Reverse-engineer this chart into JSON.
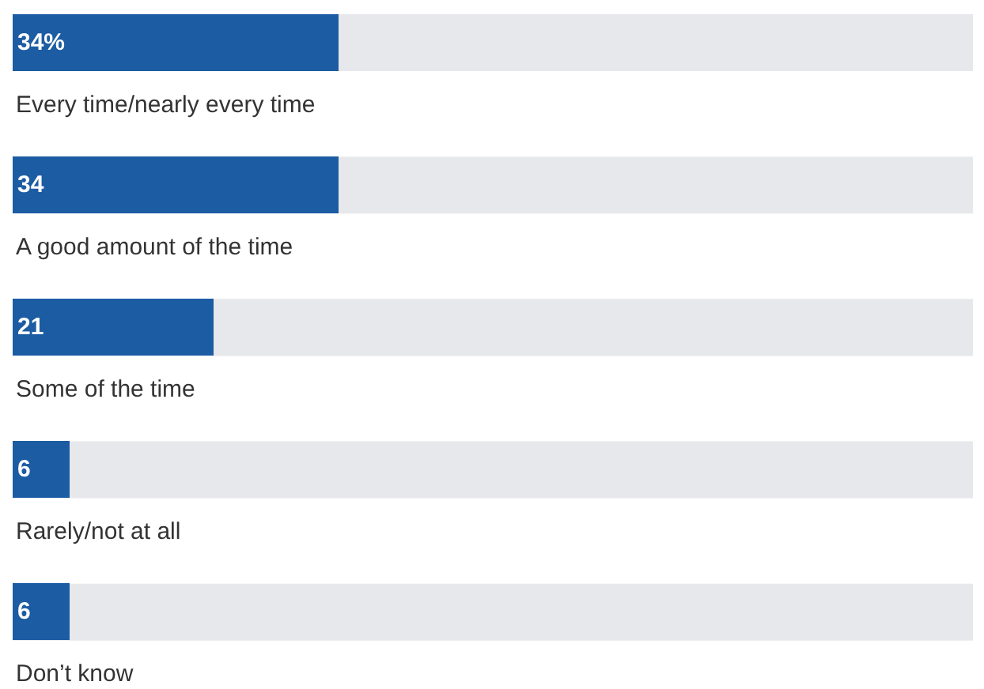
{
  "chart_data": {
    "type": "bar",
    "orientation": "horizontal",
    "categories": [
      "Every time/nearly every time",
      "A good amount of the time",
      "Some of the time",
      "Rarely/not at all",
      "Don’t know"
    ],
    "values": [
      34,
      34,
      21,
      6,
      6
    ],
    "value_labels": [
      "34%",
      "34",
      "21",
      "6",
      "6"
    ],
    "color": "#1c5ca3",
    "xlim": [
      0,
      100
    ],
    "tick_labels": "y"
  }
}
